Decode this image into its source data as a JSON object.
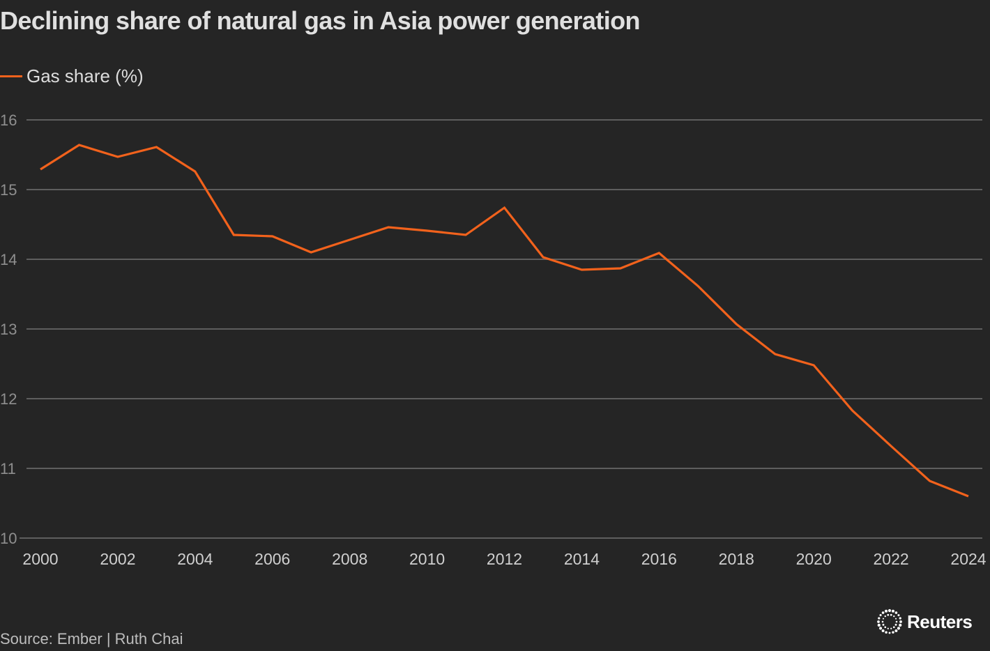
{
  "chart_data": {
    "type": "line",
    "title": "Declining share of natural gas in Asia power generation",
    "xlabel": "",
    "ylabel": "",
    "x": [
      2000,
      2001,
      2002,
      2003,
      2004,
      2005,
      2006,
      2007,
      2008,
      2009,
      2010,
      2011,
      2012,
      2013,
      2014,
      2015,
      2016,
      2017,
      2018,
      2019,
      2020,
      2021,
      2022,
      2023,
      2024
    ],
    "series": [
      {
        "name": "Gas share (%)",
        "color": "#f2621c",
        "values": [
          15.29,
          15.64,
          15.47,
          15.61,
          15.26,
          14.35,
          14.33,
          14.1,
          14.28,
          14.46,
          14.41,
          14.35,
          14.74,
          14.03,
          13.85,
          13.87,
          14.09,
          13.62,
          13.07,
          12.64,
          12.48,
          11.83,
          11.32,
          10.82,
          10.6
        ]
      }
    ],
    "xlim": [
      2000,
      2024
    ],
    "ylim": [
      10,
      16
    ],
    "yticks": [
      10,
      11,
      12,
      13,
      14,
      15,
      16
    ],
    "xticks": [
      2000,
      2002,
      2004,
      2006,
      2008,
      2010,
      2012,
      2014,
      2016,
      2018,
      2020,
      2022,
      2024
    ],
    "grid": "horizontal",
    "legend_position": "top-left",
    "source": "Source: Ember | Ruth Chai"
  },
  "brand": {
    "name": "Reuters"
  }
}
